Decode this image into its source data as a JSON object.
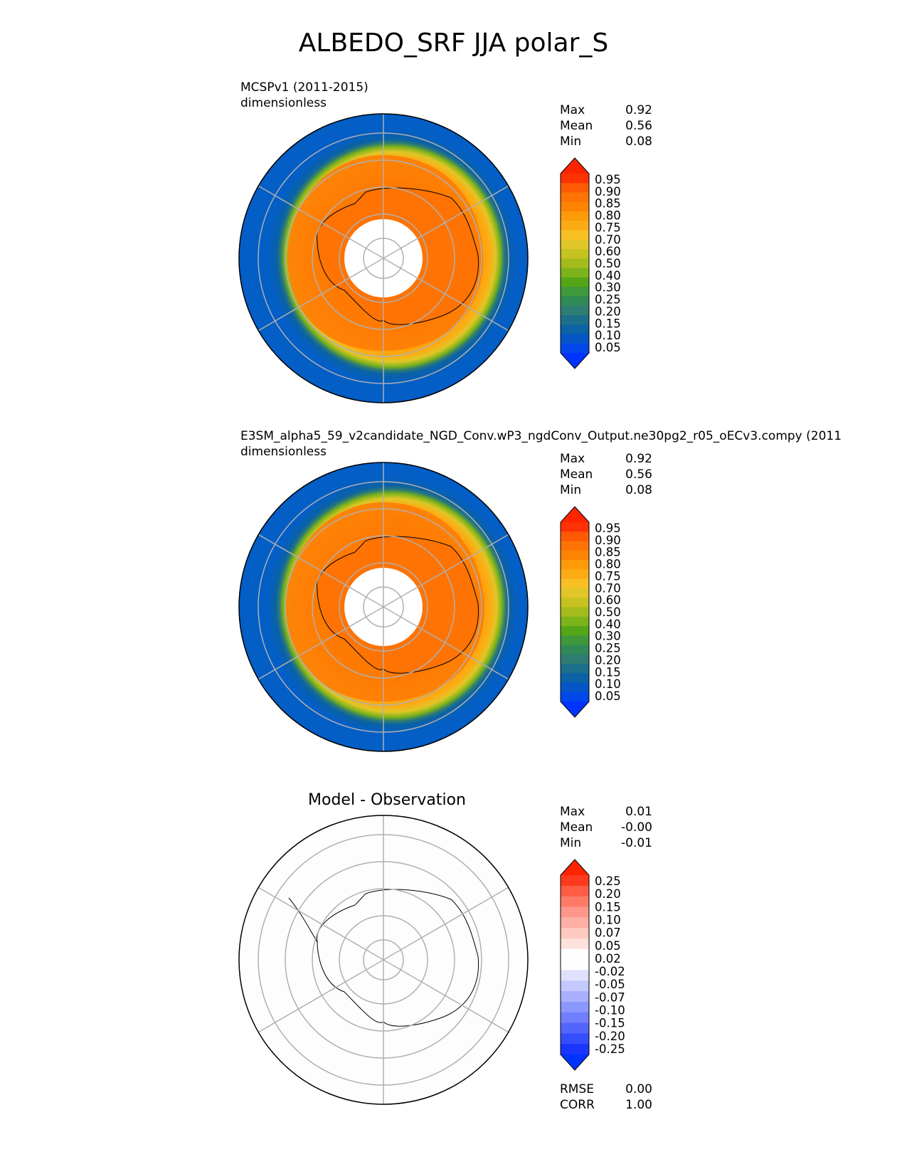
{
  "figure": {
    "title": "ALBEDO_SRF JJA polar_S"
  },
  "panels": [
    {
      "subtitle_line1": "MCSPv1 (2011-2015)",
      "subtitle_line2": "dimensionless",
      "stats": [
        {
          "label": "Max",
          "value": "0.92"
        },
        {
          "label": "Mean",
          "value": "0.56"
        },
        {
          "label": "Min",
          "value": "0.08"
        }
      ],
      "colorbar": {
        "labels": [
          "0.95",
          "0.90",
          "0.85",
          "0.80",
          "0.75",
          "0.70",
          "0.60",
          "0.50",
          "0.40",
          "0.30",
          "0.25",
          "0.20",
          "0.15",
          "0.10",
          "0.05"
        ],
        "colors": [
          "#fe3204",
          "#fe5a04",
          "#fe7303",
          "#fe8402",
          "#fe9b08",
          "#fdab14",
          "#f8c024",
          "#e0c626",
          "#c6c21f",
          "#a4bc1b",
          "#7db31a",
          "#54a617",
          "#3f983b",
          "#2f8a57",
          "#2e7c72",
          "#1c6f8a",
          "#0b62a4",
          "#0456c6",
          "#0247ea"
        ],
        "top_arrow_color": "#fe2400",
        "bottom_arrow_color": "#0033ff"
      }
    },
    {
      "subtitle_line1": "E3SM_alpha5_59_v2candidate_NGD_Conv.wP3_ngdConv_Output.ne30pg2_r05_oECv3.compy (2011",
      "subtitle_line2": "dimensionless",
      "stats": [
        {
          "label": "Max",
          "value": "0.92"
        },
        {
          "label": "Mean",
          "value": "0.56"
        },
        {
          "label": "Min",
          "value": "0.08"
        }
      ],
      "colorbar": {
        "labels": [
          "0.95",
          "0.90",
          "0.85",
          "0.80",
          "0.75",
          "0.70",
          "0.60",
          "0.50",
          "0.40",
          "0.30",
          "0.25",
          "0.20",
          "0.15",
          "0.10",
          "0.05"
        ],
        "colors": [
          "#fe3204",
          "#fe5a04",
          "#fe7303",
          "#fe8402",
          "#fe9b08",
          "#fdab14",
          "#f8c024",
          "#e0c626",
          "#c6c21f",
          "#a4bc1b",
          "#7db31a",
          "#54a617",
          "#3f983b",
          "#2f8a57",
          "#2e7c72",
          "#1c6f8a",
          "#0b62a4",
          "#0456c6",
          "#0247ea"
        ],
        "top_arrow_color": "#fe2400",
        "bottom_arrow_color": "#0033ff"
      }
    },
    {
      "title": "Model - Observation",
      "stats": [
        {
          "label": "Max",
          "value": "0.01"
        },
        {
          "label": "Mean",
          "value": "-0.00"
        },
        {
          "label": "Min",
          "value": "-0.01"
        }
      ],
      "colorbar": {
        "labels": [
          "0.25",
          "0.20",
          "0.15",
          "0.10",
          "0.07",
          "0.05",
          "0.02",
          "-0.02",
          "-0.05",
          "-0.07",
          "-0.10",
          "-0.15",
          "-0.20",
          "-0.25"
        ],
        "colors": [
          "#fe3a1e",
          "#fe5c44",
          "#fe7a66",
          "#fe978a",
          "#feb0a6",
          "#fec9c0",
          "#fee2dc",
          "#fefefe",
          "#fefefe",
          "#dfe1fe",
          "#c4c8fe",
          "#a9b0fe",
          "#8c97fe",
          "#707efe",
          "#5465fe",
          "#364dfe",
          "#1a36fe"
        ],
        "top_arrow_color": "#fe2400",
        "bottom_arrow_color": "#0033ff"
      },
      "bottom_stats": [
        {
          "label": "RMSE",
          "value": "0.00"
        },
        {
          "label": "CORR",
          "value": "1.00"
        }
      ]
    }
  ],
  "map_colors": {
    "ocean_open": "#035ec6",
    "ice_edge_green": "#54a617",
    "ice_yellow": "#f8c024",
    "ice_orange": "#fe9b08",
    "land_orange": "#fe7303",
    "gridline": "#b0b0b0"
  }
}
